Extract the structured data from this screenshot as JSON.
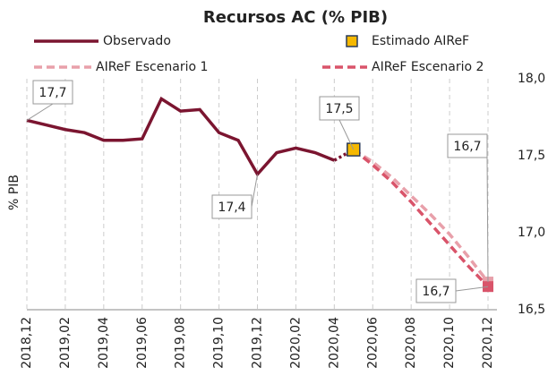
{
  "chart_data": {
    "type": "line",
    "title": "Recursos AC (% PIB)",
    "y_label": "% PIB",
    "categories": [
      "2018,12",
      null,
      "2019,02",
      null,
      "2019,04",
      null,
      "2019,06",
      null,
      "2019,08",
      null,
      "2019,10",
      null,
      "2019,12",
      null,
      "2020,02",
      null,
      "2020,04",
      null,
      "2020,06",
      null,
      "2020,08",
      null,
      "2020,10",
      null,
      "2020,12"
    ],
    "series": [
      {
        "name": "Observado",
        "color": "#7b1530",
        "style": "solid",
        "values": [
          17.73,
          17.7,
          17.67,
          17.65,
          17.6,
          17.6,
          17.61,
          17.87,
          17.79,
          17.8,
          17.65,
          17.6,
          17.38,
          17.52,
          17.55,
          17.52,
          17.47,
          null,
          null,
          null,
          null,
          null,
          null,
          null,
          null
        ],
        "value_labels": [
          "17,7",
          null,
          null,
          null,
          null,
          null,
          null,
          null,
          null,
          null,
          null,
          null,
          "17,4",
          null,
          null,
          null,
          null,
          null,
          null,
          null,
          null,
          null,
          null,
          null,
          null
        ]
      },
      {
        "name": "Estimado AIReF",
        "color": "#f5b800",
        "style": "marker",
        "values": [
          null,
          null,
          null,
          null,
          null,
          null,
          null,
          null,
          null,
          null,
          null,
          null,
          null,
          null,
          null,
          null,
          null,
          17.54,
          null,
          null,
          null,
          null,
          null,
          null,
          null
        ],
        "value_labels": [
          null,
          null,
          null,
          null,
          null,
          null,
          null,
          null,
          null,
          null,
          null,
          null,
          null,
          null,
          null,
          null,
          null,
          "17,5",
          null,
          null,
          null,
          null,
          null,
          null,
          null
        ]
      },
      {
        "name": "AIReF Escenario 1",
        "color": "#e8a0aa",
        "style": "dashed",
        "values": [
          null,
          null,
          null,
          null,
          null,
          null,
          null,
          null,
          null,
          null,
          null,
          null,
          null,
          null,
          null,
          null,
          null,
          17.54,
          17.46,
          17.36,
          17.24,
          17.12,
          16.99,
          16.84,
          16.68
        ],
        "value_labels": [
          null,
          null,
          null,
          null,
          null,
          null,
          null,
          null,
          null,
          null,
          null,
          null,
          null,
          null,
          null,
          null,
          null,
          null,
          null,
          null,
          null,
          null,
          null,
          null,
          "16,7"
        ]
      },
      {
        "name": "AIReF Escenario 2",
        "color": "#d9546a",
        "style": "dashed",
        "values": [
          null,
          null,
          null,
          null,
          null,
          null,
          null,
          null,
          null,
          null,
          null,
          null,
          null,
          null,
          null,
          null,
          null,
          17.54,
          17.44,
          17.33,
          17.2,
          17.06,
          16.92,
          16.78,
          16.65
        ],
        "value_labels": [
          null,
          null,
          null,
          null,
          null,
          null,
          null,
          null,
          null,
          null,
          null,
          null,
          null,
          null,
          null,
          null,
          null,
          null,
          null,
          null,
          null,
          null,
          null,
          null,
          "16,7"
        ]
      }
    ],
    "ylim": [
      16.5,
      18.0
    ],
    "yticks": [
      {
        "value": 16.5,
        "label": "16,5"
      },
      {
        "value": 17.0,
        "label": "17,0"
      },
      {
        "value": 17.5,
        "label": "17,5"
      },
      {
        "value": 18.0,
        "label": "18,0"
      }
    ],
    "xgrid": true
  }
}
